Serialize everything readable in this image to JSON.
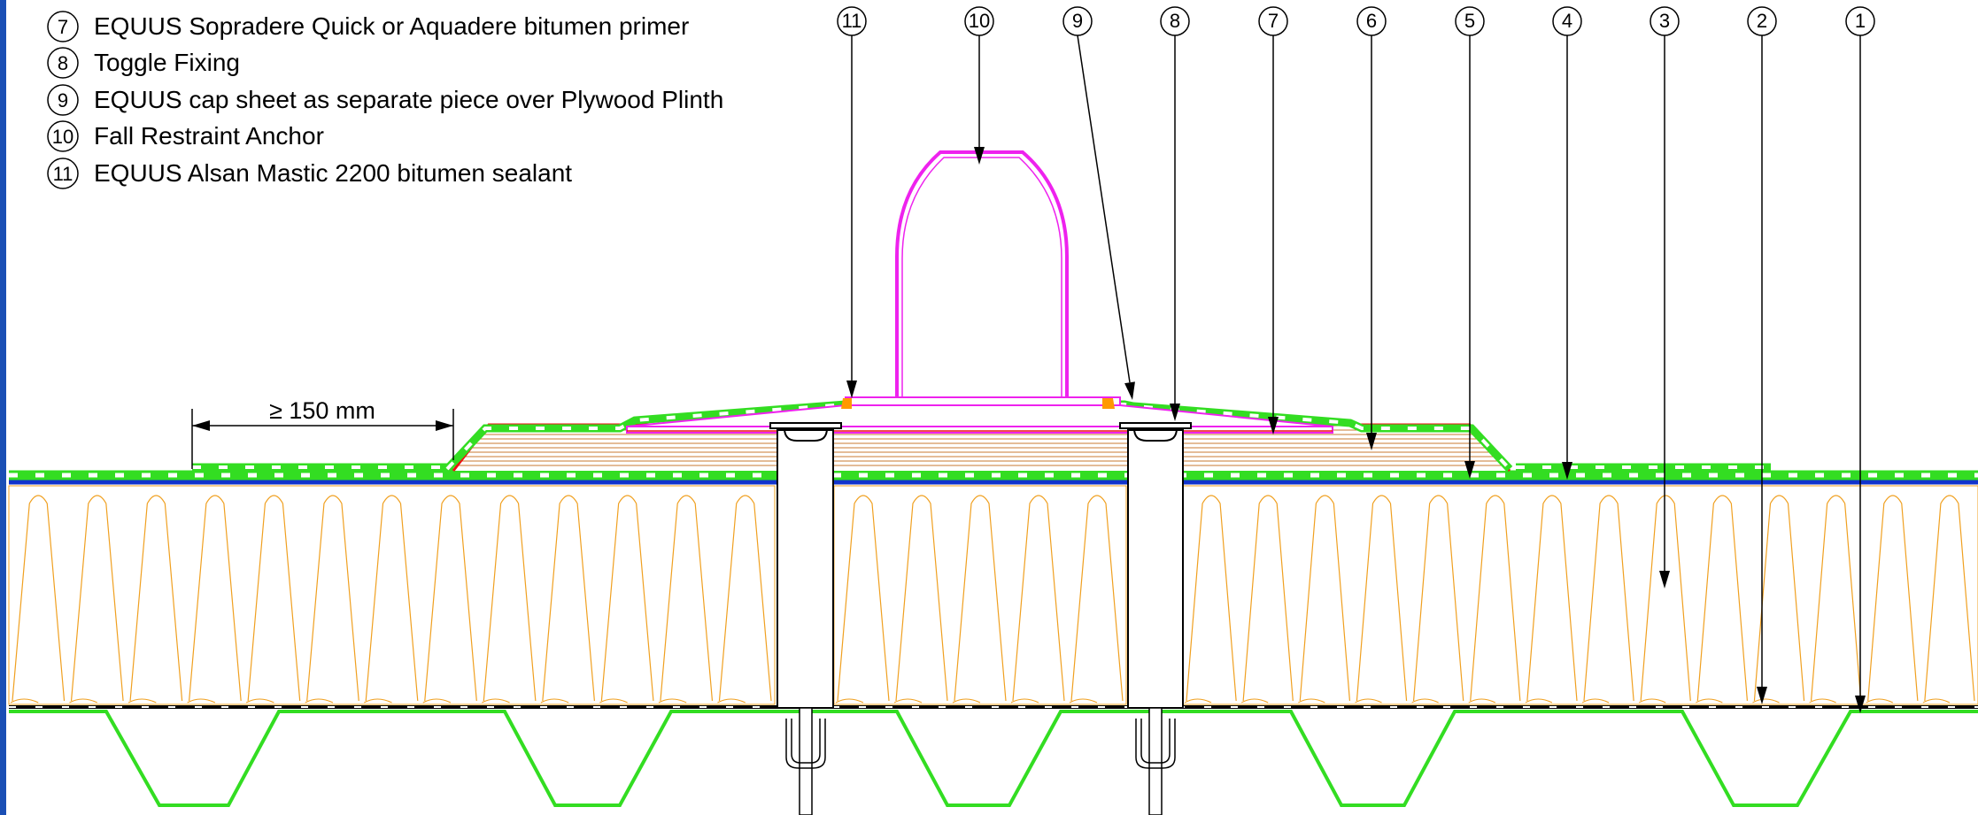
{
  "legend": [
    {
      "num": "7",
      "text": "EQUUS Sopradere Quick or Aquadere bitumen primer"
    },
    {
      "num": "8",
      "text": "Toggle Fixing"
    },
    {
      "num": "9",
      "text": "EQUUS cap sheet as separate piece over Plywood Plinth"
    },
    {
      "num": "10",
      "text": "Fall Restraint Anchor"
    },
    {
      "num": "11",
      "text": "EQUUS Alsan Mastic 2200 bitumen sealant"
    }
  ],
  "callouts": [
    "11",
    "10",
    "9",
    "8",
    "7",
    "6",
    "5",
    "4",
    "3",
    "2",
    "1"
  ],
  "dimension": {
    "text": "≥ 150  mm"
  },
  "colors": {
    "cap_sheet": "#33dd22",
    "vapour_layer": "#1133cc",
    "insulation": "#f0a020",
    "anchor": "#ee22ee",
    "plinth_edge": "#ee1111",
    "plywood_lines": "#c87830",
    "sealant": "#ff9900",
    "deck": "#33dd22",
    "border": "#1a4fb5"
  }
}
